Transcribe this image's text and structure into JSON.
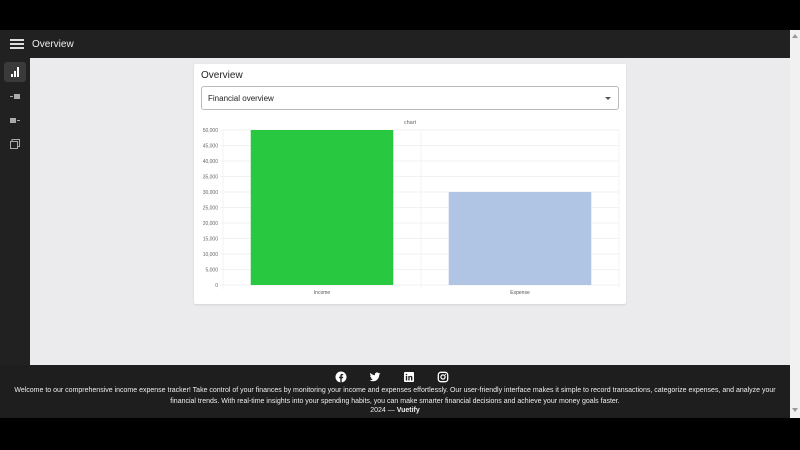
{
  "appbar": {
    "title": "Overview"
  },
  "sidebar": {
    "items": [
      {
        "icon": "bar-chart-icon",
        "active": true
      },
      {
        "icon": "income-icon",
        "active": false
      },
      {
        "icon": "expense-icon",
        "active": false
      },
      {
        "icon": "calendar-icon",
        "active": false
      }
    ]
  },
  "card": {
    "title": "Overview",
    "select_value": "Financial overview"
  },
  "chart_data": {
    "type": "bar",
    "title": "chart",
    "categories": [
      "Income",
      "Expense"
    ],
    "values": [
      50000,
      30000
    ],
    "colors": [
      "#28c840",
      "#b0c4e4"
    ],
    "ylim": [
      0,
      50000
    ],
    "yticks": [
      "0",
      "5,000",
      "10,000",
      "15,000",
      "20,000",
      "25,000",
      "30,000",
      "35,000",
      "40,000",
      "45,000",
      "50,000"
    ],
    "grid": true
  },
  "footer": {
    "social": [
      "facebook-icon",
      "twitter-icon",
      "linkedin-icon",
      "instagram-icon"
    ],
    "description": "Welcome to our comprehensive income expense tracker! Take control of your finances by monitoring your income and expenses effortlessly. Our user-friendly interface makes it simple to record transactions, categorize expenses, and analyze your financial trends. With real-time insights into your spending habits, you can make smarter financial decisions and achieve your money goals faster.",
    "year": "2024 —",
    "brand": "Vuetify"
  }
}
